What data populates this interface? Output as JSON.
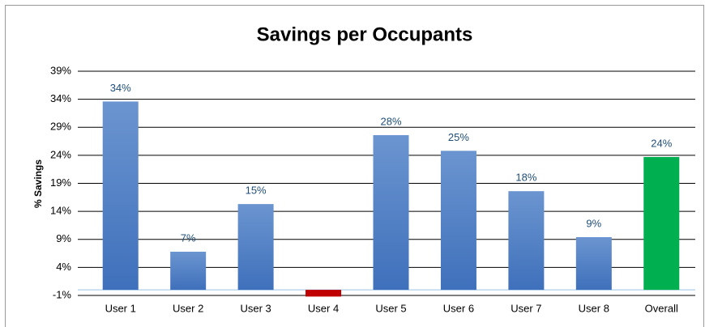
{
  "chart_data": {
    "type": "bar",
    "title": "Savings per Occupants",
    "y_label": "% Savings",
    "categories": [
      "User 1",
      "User 2",
      "User 3",
      "User 4",
      "User 5",
      "User 6",
      "User 7",
      "User 8",
      "Overall"
    ],
    "values": [
      33.6,
      6.8,
      15.3,
      -1.2,
      27.6,
      24.8,
      17.6,
      9.4,
      23.7
    ],
    "value_labels": [
      "34%",
      "7%",
      "15%",
      null,
      "28%",
      "25%",
      "18%",
      "9%",
      "24%"
    ],
    "colors": [
      "#4a7cc2",
      "#4a7cc2",
      "#4a7cc2",
      "#c00000",
      "#4a7cc2",
      "#4a7cc2",
      "#4a7cc2",
      "#4a7cc2",
      "#00b050"
    ],
    "ylim": [
      -1,
      39
    ],
    "yticks": [
      {
        "value": -1,
        "label": "-1%"
      },
      {
        "value": 4,
        "label": "4%"
      },
      {
        "value": 9,
        "label": "9%"
      },
      {
        "value": 14,
        "label": "14%"
      },
      {
        "value": 19,
        "label": "19%"
      },
      {
        "value": 24,
        "label": "24%"
      },
      {
        "value": 29,
        "label": "29%"
      },
      {
        "value": 34,
        "label": "34%"
      },
      {
        "value": 39,
        "label": "39%"
      }
    ],
    "grid": true
  }
}
